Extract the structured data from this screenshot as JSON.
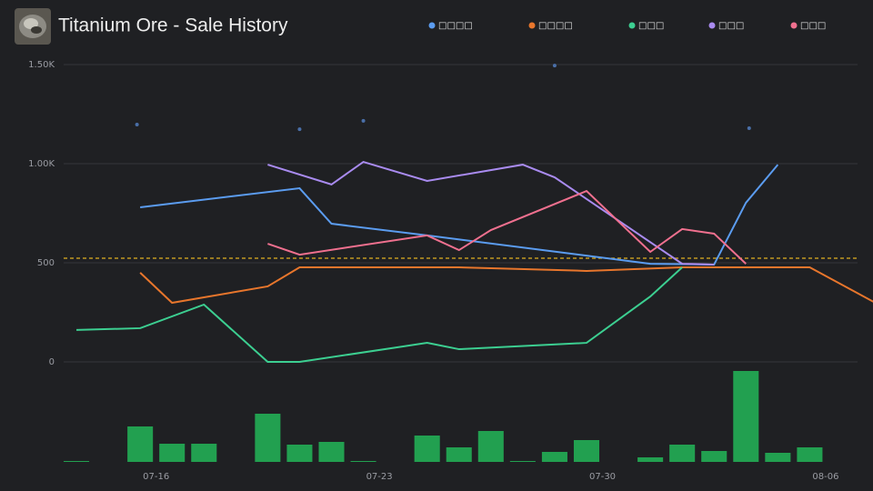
{
  "chart_data": {
    "type": "line",
    "title": "Titanium Ore - Sale History",
    "ylim": [
      0,
      1500
    ],
    "yticks": [
      0,
      500,
      {
        "value": 1000,
        "label": "1.00K"
      },
      {
        "value": 1500,
        "label": "1.50K"
      }
    ],
    "xlim": [
      13.1,
      38.0
    ],
    "xticks": [
      {
        "value": 16,
        "label": "07-16"
      },
      {
        "value": 23,
        "label": "07-23"
      },
      {
        "value": 30,
        "label": "07-30"
      },
      {
        "value": 37,
        "label": "08-06"
      }
    ],
    "grid": true,
    "reference_line": 523,
    "reference_color": "#e0b020",
    "series": [
      {
        "name": "□□□□",
        "color": "#5b9cf0",
        "x": [
          15.5,
          20.5,
          21.5,
          24.5,
          31.5,
          33.5,
          34.5,
          35.5
        ],
        "values": [
          780,
          876,
          697,
          638,
          495,
          491,
          803,
          995
        ]
      },
      {
        "name": "□□□□",
        "color": "#e8762c",
        "x": [
          15.5,
          16.5,
          19.5,
          20.5,
          25.5,
          29.5,
          32.5,
          36.5,
          38.5
        ],
        "values": [
          450,
          298,
          381,
          477,
          477,
          459,
          477,
          477,
          303
        ]
      },
      {
        "name": "□□□",
        "color": "#3ccf91",
        "x": [
          13.5,
          15.5,
          17.5,
          19.5,
          20.5,
          24.5,
          25.5,
          29.5,
          31.5,
          32.5
        ],
        "values": [
          161,
          170,
          289,
          0,
          0,
          96,
          64,
          96,
          330,
          477
        ]
      },
      {
        "name": "□□□",
        "color": "#a98bf0",
        "x": [
          19.5,
          21.5,
          22.5,
          24.5,
          27.5,
          28.5,
          32.5,
          33.5
        ],
        "values": [
          995,
          895,
          1009,
          913,
          995,
          931,
          495,
          491
        ]
      },
      {
        "name": "□□□",
        "color": "#f0708f",
        "x": [
          19.5,
          20.5,
          24.5,
          25.5,
          26.5,
          29.5,
          31.5,
          32.5,
          33.5,
          34.5
        ],
        "values": [
          596,
          541,
          638,
          564,
          665,
          862,
          555,
          670,
          647,
          495
        ]
      }
    ],
    "points": {
      "color": "#4a6fa8",
      "x": [
        15.4,
        20.5,
        22.5,
        28.5,
        34.6
      ],
      "values": [
        1197,
        1174,
        1216,
        1495,
        1179
      ]
    },
    "volume": {
      "color": "#22a050",
      "x": [
        13.5,
        15.5,
        16.5,
        17.5,
        19.5,
        20.5,
        21.5,
        22.5,
        24.5,
        25.5,
        26.5,
        27.5,
        28.5,
        29.5,
        31.5,
        32.5,
        33.5,
        34.5,
        35.5,
        36.5
      ],
      "values": [
        1,
        39,
        20,
        20,
        53,
        19,
        22,
        1,
        29,
        16,
        34,
        1,
        11,
        24,
        5,
        19,
        12,
        100,
        10,
        16
      ]
    }
  }
}
